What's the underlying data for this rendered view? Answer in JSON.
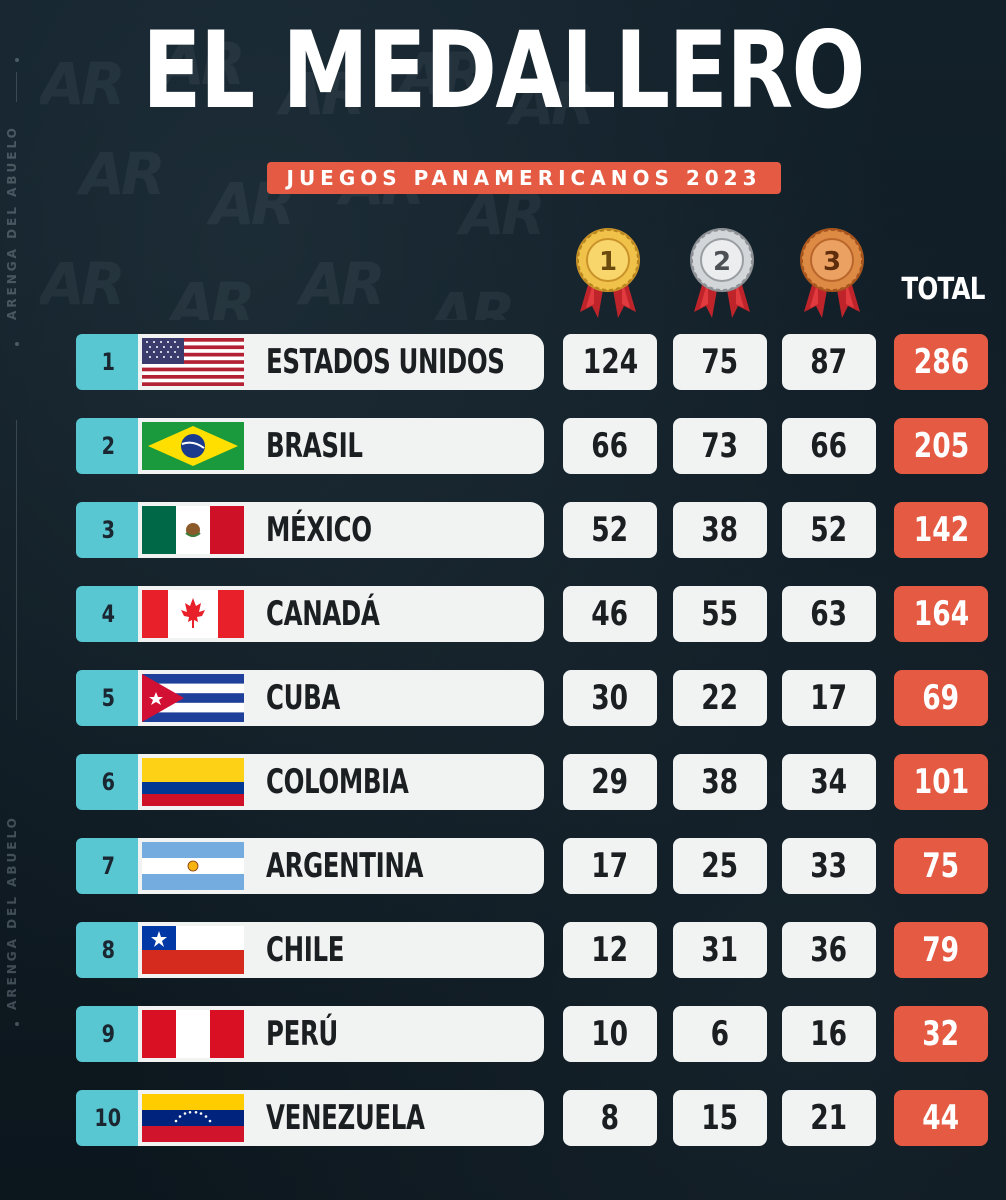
{
  "header": {
    "title": "EL MEDALLERO",
    "subtitle": "JUEGOS PANAMERICANOS 2023",
    "watermark": "ARENGA DEL ABUELO"
  },
  "columns": {
    "gold_medal_number": "1",
    "silver_medal_number": "2",
    "bronze_medal_number": "3",
    "total_label": "TOTAL"
  },
  "colors": {
    "accent": "#e45a43",
    "rank_teal": "#58c7d2",
    "background": "#0f1b24",
    "row_bg": "#f1f2f2"
  },
  "rows": [
    {
      "rank": "1",
      "country": "ESTADOS UNIDOS",
      "flag": "usa-flag",
      "gold": "124",
      "silver": "75",
      "bronze": "87",
      "total": "286"
    },
    {
      "rank": "2",
      "country": "BRASIL",
      "flag": "brazil-flag",
      "gold": "66",
      "silver": "73",
      "bronze": "66",
      "total": "205"
    },
    {
      "rank": "3",
      "country": "MÉXICO",
      "flag": "mexico-flag",
      "gold": "52",
      "silver": "38",
      "bronze": "52",
      "total": "142"
    },
    {
      "rank": "4",
      "country": "CANADÁ",
      "flag": "canada-flag",
      "gold": "46",
      "silver": "55",
      "bronze": "63",
      "total": "164"
    },
    {
      "rank": "5",
      "country": "CUBA",
      "flag": "cuba-flag",
      "gold": "30",
      "silver": "22",
      "bronze": "17",
      "total": "69"
    },
    {
      "rank": "6",
      "country": "COLOMBIA",
      "flag": "colombia-flag",
      "gold": "29",
      "silver": "38",
      "bronze": "34",
      "total": "101"
    },
    {
      "rank": "7",
      "country": "ARGENTINA",
      "flag": "argentina-flag",
      "gold": "17",
      "silver": "25",
      "bronze": "33",
      "total": "75"
    },
    {
      "rank": "8",
      "country": "CHILE",
      "flag": "chile-flag",
      "gold": "12",
      "silver": "31",
      "bronze": "36",
      "total": "79"
    },
    {
      "rank": "9",
      "country": "PERÚ",
      "flag": "peru-flag",
      "gold": "10",
      "silver": "6",
      "bronze": "16",
      "total": "32"
    },
    {
      "rank": "10",
      "country": "VENEZUELA",
      "flag": "venezuela-flag",
      "gold": "8",
      "silver": "15",
      "bronze": "21",
      "total": "44"
    }
  ]
}
